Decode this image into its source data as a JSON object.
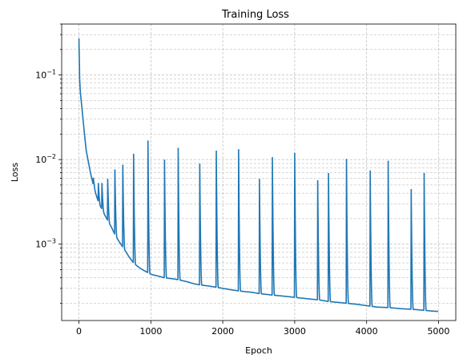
{
  "chart_data": {
    "type": "line",
    "title": "Training Loss",
    "xlabel": "Epoch",
    "ylabel": "Loss",
    "xlim": [
      -240,
      5240
    ],
    "ylim": [
      0.000125,
      0.4
    ],
    "yscale": "log",
    "grid": "on (major and minor, dashed)",
    "color": "#1f77b4",
    "x_ticks": [
      0,
      1000,
      2000,
      3000,
      4000,
      5000
    ],
    "x_tick_labels": [
      "0",
      "1000",
      "2000",
      "3000",
      "4000",
      "5000"
    ],
    "y_ticks": [
      {
        "value": 0.1,
        "base": "10",
        "exp": "−1"
      },
      {
        "value": 0.01,
        "base": "10",
        "exp": "−2"
      },
      {
        "value": 0.001,
        "base": "10",
        "exp": "−3"
      }
    ],
    "series": [
      {
        "x": [
          0,
          10,
          20,
          40,
          60,
          80,
          100,
          130,
          160,
          200,
          240,
          280,
          320,
          360,
          400,
          450,
          500,
          550,
          600,
          650,
          700,
          760,
          800,
          850,
          900,
          960,
          1000,
          1100,
          1190,
          1300,
          1380,
          1500,
          1600,
          1680,
          1800,
          1910,
          2000,
          2100,
          2220,
          2300,
          2400,
          2510,
          2600,
          2690,
          2800,
          2900,
          3000,
          3100,
          3200,
          3320,
          3400,
          3470,
          3600,
          3720,
          3850,
          3950,
          4050,
          4150,
          4300,
          4400,
          4500,
          4620,
          4700,
          4800,
          4900,
          5000
        ],
        "y": [
          0.27,
          0.09,
          0.062,
          0.042,
          0.028,
          0.019,
          0.013,
          0.0095,
          0.007,
          0.005,
          0.0038,
          0.003,
          0.0026,
          0.0022,
          0.0019,
          0.0016,
          0.0013,
          0.0011,
          0.00095,
          0.00082,
          0.0007,
          0.0006,
          0.00056,
          0.00052,
          0.00049,
          0.00046,
          0.00044,
          0.00042,
          0.0004,
          0.00039,
          0.00038,
          0.00036,
          0.00034,
          0.00033,
          0.00032,
          0.00031,
          0.0003,
          0.00029,
          0.00028,
          0.000275,
          0.00027,
          0.00026,
          0.000255,
          0.00025,
          0.000245,
          0.00024,
          0.000235,
          0.00023,
          0.000225,
          0.00022,
          0.000215,
          0.00021,
          0.000205,
          0.0002,
          0.000195,
          0.00019,
          0.000185,
          0.00018,
          0.000178,
          0.000175,
          0.000172,
          0.00017,
          0.000168,
          0.000165,
          0.000162,
          0.00016
        ]
      }
    ],
    "spikes": [
      {
        "x": 200,
        "y": 0.006
      },
      {
        "x": 270,
        "y": 0.0052
      },
      {
        "x": 320,
        "y": 0.0052
      },
      {
        "x": 400,
        "y": 0.0058
      },
      {
        "x": 500,
        "y": 0.0075
      },
      {
        "x": 610,
        "y": 0.0085
      },
      {
        "x": 760,
        "y": 0.0115
      },
      {
        "x": 960,
        "y": 0.0165
      },
      {
        "x": 1190,
        "y": 0.0098
      },
      {
        "x": 1380,
        "y": 0.0135
      },
      {
        "x": 1680,
        "y": 0.0088
      },
      {
        "x": 1910,
        "y": 0.0125
      },
      {
        "x": 2220,
        "y": 0.013
      },
      {
        "x": 2510,
        "y": 0.0058
      },
      {
        "x": 2690,
        "y": 0.0105
      },
      {
        "x": 3000,
        "y": 0.0118
      },
      {
        "x": 3320,
        "y": 0.0056
      },
      {
        "x": 3470,
        "y": 0.0068
      },
      {
        "x": 3720,
        "y": 0.01
      },
      {
        "x": 4050,
        "y": 0.0073
      },
      {
        "x": 4300,
        "y": 0.0095
      },
      {
        "x": 4620,
        "y": 0.0044
      },
      {
        "x": 4800,
        "y": 0.0068
      }
    ]
  }
}
